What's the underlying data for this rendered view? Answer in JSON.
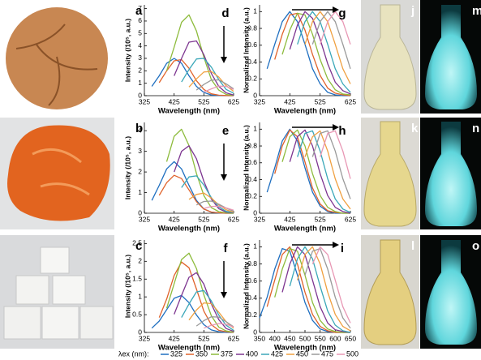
{
  "photos": [
    {
      "panel": "a"
    },
    {
      "panel": "b"
    },
    {
      "panel": "c"
    },
    {
      "panel": "j"
    },
    {
      "panel": "k"
    },
    {
      "panel": "l"
    },
    {
      "panel": "m"
    },
    {
      "panel": "n"
    },
    {
      "panel": "o"
    }
  ],
  "legend": {
    "title": "λex (nm):",
    "entries": [
      {
        "name": "325",
        "color": "#1f6fc0"
      },
      {
        "name": "350",
        "color": "#e0622a"
      },
      {
        "name": "375",
        "color": "#8dbb3c"
      },
      {
        "name": "400",
        "color": "#7d3590"
      },
      {
        "name": "425",
        "color": "#3aa7b8"
      },
      {
        "name": "450",
        "color": "#f0a040"
      },
      {
        "name": "475",
        "color": "#9a9a9a"
      },
      {
        "name": "500",
        "color": "#e897b4"
      }
    ]
  },
  "chart_data": [
    {
      "type": "line",
      "panel": "d",
      "arrow": "down",
      "xlabel": "Wavelength (nm)",
      "ylabel": "Intensity (/10⁵, a.u.)",
      "x": [
        325,
        350,
        375,
        400,
        425,
        450,
        475,
        500,
        525,
        550,
        575,
        600,
        625
      ],
      "xlim": [
        325,
        625
      ],
      "xticks": [
        325,
        425,
        525,
        625
      ],
      "ylim": [
        0,
        7.3
      ],
      "yticks": [
        0,
        1,
        2,
        3,
        4,
        5,
        6,
        7
      ],
      "series": [
        {
          "values": [
            null,
            0.75,
            1.6,
            2.6,
            3.0,
            2.6,
            1.6,
            0.75,
            0.26,
            0.06,
            0.01,
            0,
            0
          ]
        },
        {
          "values": [
            null,
            null,
            1.05,
            2.0,
            2.8,
            2.9,
            2.2,
            1.2,
            0.5,
            0.15,
            0.04,
            0.01,
            0
          ]
        },
        {
          "values": [
            null,
            null,
            null,
            2.0,
            3.9,
            5.9,
            6.5,
            5.2,
            3.1,
            1.3,
            0.45,
            0.1,
            0.02
          ]
        },
        {
          "values": [
            null,
            null,
            null,
            null,
            1.6,
            3.0,
            4.3,
            4.4,
            3.3,
            1.8,
            0.75,
            0.23,
            0.05
          ]
        },
        {
          "values": [
            null,
            null,
            null,
            null,
            null,
            1.1,
            2.1,
            2.95,
            3.0,
            2.3,
            1.3,
            0.5,
            0.2
          ]
        },
        {
          "values": [
            null,
            null,
            null,
            null,
            null,
            null,
            0.7,
            1.35,
            1.9,
            1.95,
            1.5,
            0.8,
            0.35
          ]
        },
        {
          "values": [
            null,
            null,
            null,
            null,
            null,
            null,
            null,
            0.45,
            0.9,
            1.25,
            1.27,
            0.95,
            0.55
          ]
        },
        {
          "values": [
            null,
            null,
            null,
            null,
            null,
            null,
            null,
            null,
            0.3,
            0.55,
            0.77,
            0.75,
            0.5
          ]
        }
      ]
    },
    {
      "type": "line",
      "panel": "e",
      "arrow": "down",
      "xlabel": "Wavelength (nm)",
      "ylabel": "Intensity (/10⁵, a.u.)",
      "x": [
        325,
        350,
        375,
        400,
        425,
        450,
        475,
        500,
        525,
        550,
        575,
        600,
        625
      ],
      "xlim": [
        325,
        625
      ],
      "xticks": [
        325,
        425,
        525,
        625
      ],
      "ylim": [
        0,
        4.4
      ],
      "yticks": [
        0,
        1,
        2,
        3,
        4
      ],
      "series": [
        {
          "values": [
            null,
            0.62,
            1.35,
            2.15,
            2.5,
            2.15,
            1.35,
            0.62,
            0.21,
            0.05,
            0.01,
            0,
            0
          ]
        },
        {
          "values": [
            null,
            null,
            0.87,
            1.48,
            1.84,
            1.68,
            1.13,
            0.56,
            0.2,
            0.06,
            0.02,
            0,
            0
          ]
        },
        {
          "values": [
            null,
            null,
            null,
            2.5,
            3.73,
            4.07,
            3.28,
            1.93,
            0.86,
            0.27,
            0.08,
            0.02,
            0
          ]
        },
        {
          "values": [
            null,
            null,
            null,
            null,
            2.0,
            3.0,
            3.27,
            2.64,
            1.55,
            0.69,
            0.22,
            0.06,
            0.02
          ]
        },
        {
          "values": [
            null,
            null,
            null,
            null,
            null,
            1.24,
            1.76,
            1.81,
            1.37,
            0.76,
            0.31,
            0.09,
            0.03
          ]
        },
        {
          "values": [
            null,
            null,
            null,
            null,
            null,
            null,
            0.67,
            0.91,
            0.98,
            0.74,
            0.41,
            0.17,
            0.05
          ]
        },
        {
          "values": [
            null,
            null,
            null,
            null,
            null,
            null,
            null,
            0.4,
            0.57,
            0.59,
            0.44,
            0.25,
            0.1
          ]
        },
        {
          "values": [
            null,
            null,
            null,
            null,
            null,
            null,
            null,
            null,
            0.23,
            0.33,
            0.34,
            0.26,
            0.15
          ]
        }
      ]
    },
    {
      "type": "line",
      "panel": "f",
      "arrow": "down",
      "xlabel": "Wavelength (nm)",
      "ylabel": "Intensity (/10⁵, a.u.)",
      "x": [
        325,
        350,
        375,
        400,
        425,
        450,
        475,
        500,
        525,
        550,
        575,
        600,
        625
      ],
      "xlim": [
        325,
        625
      ],
      "xticks": [
        325,
        425,
        525,
        625
      ],
      "ylim": [
        0,
        2.6
      ],
      "yticks": [
        0,
        0.5,
        1,
        1.5,
        2,
        2.5
      ],
      "series": [
        {
          "values": [
            null,
            0.12,
            0.32,
            0.64,
            0.96,
            1.04,
            0.84,
            0.49,
            0.22,
            0.07,
            0.02,
            0,
            0
          ]
        },
        {
          "values": [
            null,
            null,
            0.42,
            0.94,
            1.6,
            1.98,
            1.82,
            1.22,
            0.6,
            0.22,
            0.06,
            0.02,
            0
          ]
        },
        {
          "values": [
            null,
            null,
            null,
            0.68,
            1.37,
            2.05,
            2.23,
            1.8,
            1.06,
            0.47,
            0.15,
            0.04,
            0.01
          ]
        },
        {
          "values": [
            null,
            null,
            null,
            null,
            0.51,
            1.04,
            1.55,
            1.68,
            1.36,
            0.8,
            0.36,
            0.11,
            0.03
          ]
        },
        {
          "values": [
            null,
            null,
            null,
            null,
            null,
            0.42,
            0.8,
            1.14,
            1.18,
            0.89,
            0.49,
            0.2,
            0.06
          ]
        },
        {
          "values": [
            null,
            null,
            null,
            null,
            null,
            null,
            0.35,
            0.63,
            0.83,
            0.81,
            0.57,
            0.3,
            0.12
          ]
        },
        {
          "values": [
            null,
            null,
            null,
            null,
            null,
            null,
            null,
            0.18,
            0.33,
            0.44,
            0.43,
            0.3,
            0.16
          ]
        },
        {
          "values": [
            null,
            null,
            null,
            null,
            null,
            null,
            null,
            null,
            0.12,
            0.2,
            0.25,
            0.23,
            0.15
          ]
        }
      ]
    },
    {
      "type": "line",
      "panel": "g",
      "arrow": "right",
      "xlabel": "Wavelength (nm)",
      "ylabel": "Normalized Intensity (a.u.)",
      "x": [
        325,
        350,
        375,
        400,
        425,
        450,
        475,
        500,
        525,
        550,
        575,
        600,
        625
      ],
      "xlim": [
        325,
        625
      ],
      "xticks": [
        325,
        425,
        525,
        625
      ],
      "ylim": [
        0,
        1.08
      ],
      "yticks": [
        0,
        0.2,
        0.4,
        0.6,
        0.8,
        1
      ],
      "series": [
        {
          "values": [
            null,
            0.32,
            0.61,
            0.88,
            1,
            0.88,
            0.61,
            0.32,
            0.14,
            0.04,
            0.01,
            0,
            0
          ]
        },
        {
          "values": [
            null,
            null,
            0.43,
            0.73,
            0.96,
            0.98,
            0.78,
            0.49,
            0.24,
            0.09,
            0.03,
            0.01,
            0
          ]
        },
        {
          "values": [
            null,
            null,
            null,
            0.49,
            0.78,
            0.98,
            0.96,
            0.73,
            0.43,
            0.2,
            0.07,
            0.02,
            0.01
          ]
        },
        {
          "values": [
            null,
            null,
            null,
            null,
            0.55,
            0.84,
            1,
            0.92,
            0.67,
            0.38,
            0.16,
            0.06,
            0.02
          ]
        },
        {
          "values": [
            null,
            null,
            null,
            null,
            null,
            0.61,
            0.88,
            1,
            0.88,
            0.61,
            0.32,
            0.14,
            0.04
          ]
        },
        {
          "values": [
            null,
            null,
            null,
            null,
            null,
            null,
            0.61,
            0.88,
            1,
            0.88,
            0.61,
            0.32,
            0.14
          ]
        },
        {
          "values": [
            null,
            null,
            null,
            null,
            null,
            null,
            null,
            0.61,
            0.88,
            1,
            0.88,
            0.61,
            0.32
          ]
        },
        {
          "values": [
            null,
            null,
            null,
            null,
            null,
            null,
            null,
            null,
            0.61,
            0.88,
            1,
            0.88,
            0.61
          ]
        }
      ]
    },
    {
      "type": "line",
      "panel": "h",
      "arrow": "right",
      "xlabel": "Wavelength (nm)",
      "ylabel": "Normalized Intensity (a.u.)",
      "x": [
        325,
        350,
        375,
        400,
        425,
        450,
        475,
        500,
        525,
        550,
        575,
        600,
        625
      ],
      "xlim": [
        325,
        625
      ],
      "xticks": [
        325,
        425,
        525,
        625
      ],
      "ylim": [
        0,
        1.08
      ],
      "yticks": [
        0,
        0.2,
        0.4,
        0.6,
        0.8,
        1
      ],
      "series": [
        {
          "values": [
            null,
            0.25,
            0.54,
            0.86,
            1,
            0.86,
            0.54,
            0.25,
            0.085,
            0.02,
            0,
            0,
            0
          ]
        },
        {
          "values": [
            null,
            null,
            0.47,
            0.8,
            0.99,
            0.91,
            0.61,
            0.3,
            0.11,
            0.03,
            0.01,
            0,
            0
          ]
        },
        {
          "values": [
            null,
            null,
            null,
            0.61,
            0.91,
            0.99,
            0.8,
            0.47,
            0.21,
            0.07,
            0.02,
            0,
            0
          ]
        },
        {
          "values": [
            null,
            null,
            null,
            null,
            0.61,
            0.91,
            0.99,
            0.8,
            0.47,
            0.21,
            0.07,
            0.02,
            0
          ]
        },
        {
          "values": [
            null,
            null,
            null,
            null,
            null,
            0.67,
            0.95,
            0.98,
            0.74,
            0.41,
            0.17,
            0.05,
            0.01
          ]
        },
        {
          "values": [
            null,
            null,
            null,
            null,
            null,
            null,
            0.67,
            0.91,
            0.98,
            0.74,
            0.41,
            0.17,
            0.05
          ]
        },
        {
          "values": [
            null,
            null,
            null,
            null,
            null,
            null,
            null,
            0.67,
            0.95,
            0.98,
            0.74,
            0.41,
            0.17
          ]
        },
        {
          "values": [
            null,
            null,
            null,
            null,
            null,
            null,
            null,
            null,
            0.67,
            0.95,
            0.98,
            0.74,
            0.41
          ]
        }
      ]
    },
    {
      "type": "line",
      "panel": "i",
      "arrow": "right",
      "xlabel": "Wavelength (nm)",
      "ylabel": "Normalized Intensity (a.u.)",
      "x": [
        350,
        375,
        400,
        425,
        450,
        475,
        500,
        525,
        550,
        575,
        600,
        625,
        650
      ],
      "xlim": [
        350,
        650
      ],
      "xticks": [
        350,
        400,
        450,
        500,
        550,
        600,
        650
      ],
      "ylim": [
        0,
        1.08
      ],
      "yticks": [
        0,
        0.2,
        0.4,
        0.6,
        0.8,
        1
      ],
      "series": [
        {
          "values": [
            0.17,
            0.41,
            0.74,
            0.98,
            0.95,
            0.67,
            0.35,
            0.14,
            0.04,
            0.01,
            0,
            0,
            0
          ]
        },
        {
          "values": [
            null,
            0.3,
            0.61,
            0.91,
            1,
            0.8,
            0.47,
            0.21,
            0.07,
            0.02,
            0,
            0,
            0
          ]
        },
        {
          "values": [
            null,
            null,
            0.41,
            0.74,
            0.98,
            0.95,
            0.67,
            0.35,
            0.14,
            0.04,
            0.01,
            0,
            0
          ]
        },
        {
          "values": [
            null,
            null,
            null,
            0.47,
            0.8,
            1,
            0.91,
            0.61,
            0.3,
            0.11,
            0.03,
            0.01,
            0
          ]
        },
        {
          "values": [
            null,
            null,
            null,
            null,
            0.54,
            0.86,
            1,
            0.86,
            0.54,
            0.25,
            0.085,
            0.02,
            0
          ]
        },
        {
          "values": [
            null,
            null,
            null,
            null,
            null,
            0.61,
            0.91,
            1,
            0.8,
            0.47,
            0.21,
            0.07,
            0.02
          ]
        },
        {
          "values": [
            null,
            null,
            null,
            null,
            null,
            null,
            0.67,
            0.95,
            0.98,
            0.74,
            0.41,
            0.17,
            0.05
          ]
        },
        {
          "values": [
            null,
            null,
            null,
            null,
            null,
            null,
            null,
            0.8,
            1,
            0.91,
            0.61,
            0.3,
            0.11
          ]
        }
      ]
    }
  ]
}
